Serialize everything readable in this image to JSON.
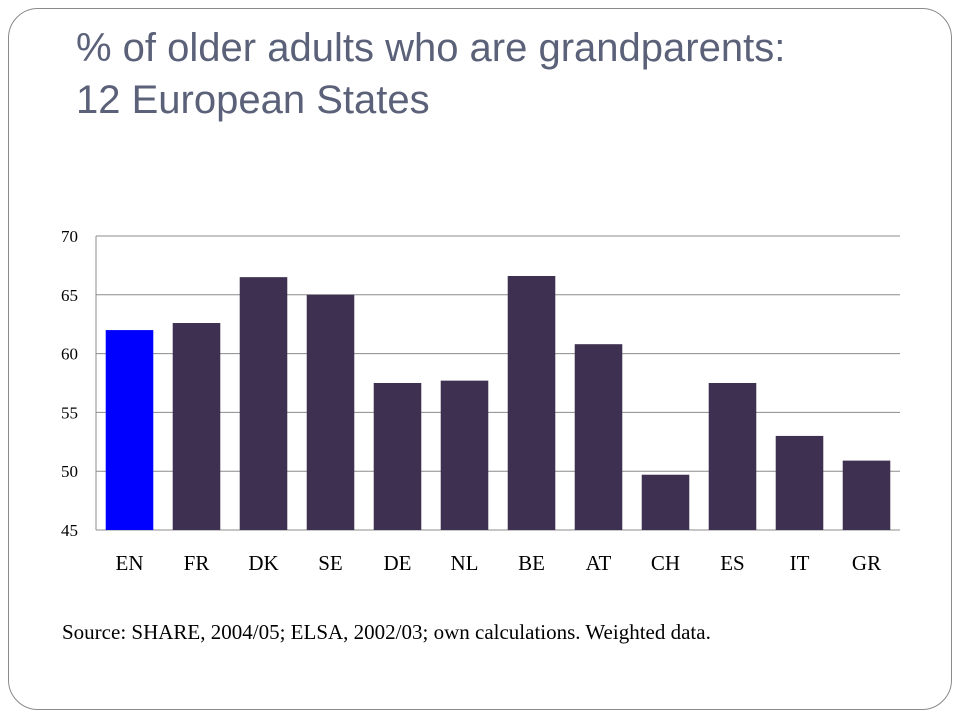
{
  "title_lines": [
    "% of older adults who are grandparents:",
    "12 European States"
  ],
  "source_note": "Source: SHARE, 2004/05; ELSA, 2002/03; own calculations. Weighted data.",
  "colors": {
    "title": "#5a6178",
    "bar_default": "#3e3050",
    "bar_highlight": "#0000ff",
    "gridline": "#8c8c8c",
    "frame": "#8a8a8a"
  },
  "chart_data": {
    "type": "bar",
    "categories": [
      "EN",
      "FR",
      "DK",
      "SE",
      "DE",
      "NL",
      "BE",
      "AT",
      "CH",
      "ES",
      "IT",
      "GR"
    ],
    "values": [
      62.0,
      62.6,
      66.5,
      65.0,
      57.5,
      57.7,
      66.6,
      60.8,
      49.7,
      57.5,
      53.0,
      50.9
    ],
    "highlight_category": "EN",
    "ylim": [
      45,
      70
    ],
    "yticks": [
      45,
      50,
      55,
      60,
      65,
      70
    ],
    "grid": true,
    "legend": "none",
    "title": "",
    "xlabel": "",
    "ylabel": ""
  }
}
